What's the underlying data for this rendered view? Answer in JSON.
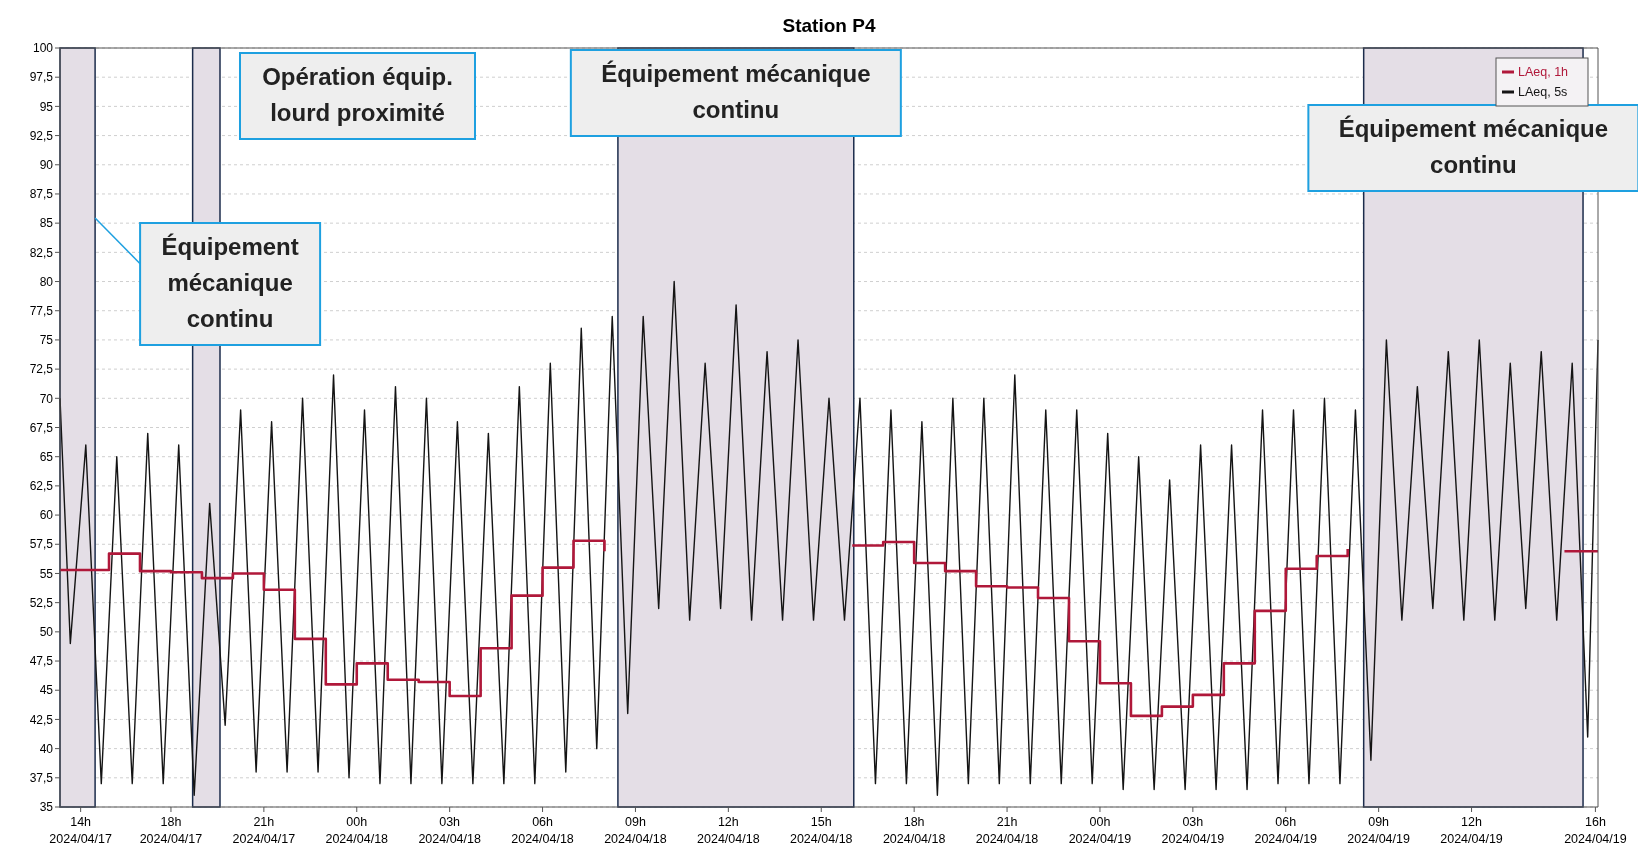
{
  "chart_data": {
    "type": "line",
    "title": "Station P4",
    "xlim": [
      "2024-04-17T14:25",
      "2024-04-19T16:05"
    ],
    "xticks": [
      {
        "value": "2024-04-17T15:05",
        "label": "14h\n2024/04/17"
      },
      {
        "value": "2024-04-17T18:00",
        "label": "18h\n2024/04/17"
      },
      {
        "value": "2024-04-17T21:00",
        "label": "21h\n2024/04/17"
      },
      {
        "value": "2024-04-18T00:00",
        "label": "00h\n2024/04/18"
      },
      {
        "value": "2024-04-18T03:00",
        "label": "03h\n2024/04/18"
      },
      {
        "value": "2024-04-18T06:00",
        "label": "06h\n2024/04/18"
      },
      {
        "value": "2024-04-18T09:00",
        "label": "09h\n2024/04/18"
      },
      {
        "value": "2024-04-18T12:00",
        "label": "12h\n2024/04/18"
      },
      {
        "value": "2024-04-18T15:00",
        "label": "15h\n2024/04/18"
      },
      {
        "value": "2024-04-18T18:00",
        "label": "18h\n2024/04/18"
      },
      {
        "value": "2024-04-18T21:00",
        "label": "21h\n2024/04/18"
      },
      {
        "value": "2024-04-19T00:00",
        "label": "00h\n2024/04/19"
      },
      {
        "value": "2024-04-19T03:00",
        "label": "03h\n2024/04/19"
      },
      {
        "value": "2024-04-19T06:00",
        "label": "06h\n2024/04/19"
      },
      {
        "value": "2024-04-19T09:00",
        "label": "09h\n2024/04/19"
      },
      {
        "value": "2024-04-19T12:00",
        "label": "12h\n2024/04/19"
      },
      {
        "value": "2024-04-19T16:00",
        "label": "16h\n2024/04/19"
      }
    ],
    "ylim": [
      35,
      100
    ],
    "yticks": [
      35,
      {
        "value": 37.5,
        "label": "37,5"
      },
      40,
      {
        "value": 42.5,
        "label": "42,5"
      },
      45,
      {
        "value": 47.5,
        "label": "47,5"
      },
      50,
      {
        "value": 52.5,
        "label": "52,5"
      },
      55,
      {
        "value": 57.5,
        "label": "57,5"
      },
      60,
      {
        "value": 62.5,
        "label": "62,5"
      },
      65,
      {
        "value": 67.5,
        "label": "67,5"
      },
      70,
      {
        "value": 72.5,
        "label": "72,5"
      },
      75,
      {
        "value": 77.5,
        "label": "77,5"
      },
      80,
      {
        "value": 82.5,
        "label": "82,5"
      },
      85,
      {
        "value": 87.5,
        "label": "87,5"
      },
      90,
      {
        "value": 92.5,
        "label": "92,5"
      },
      95,
      {
        "value": 97.5,
        "label": "97,5"
      },
      100
    ],
    "grid": "y",
    "legend": "top right",
    "bands": [
      {
        "axis": "x",
        "from": "2024-04-17T14:25",
        "to": "2024-04-17T15:33",
        "label": "Équipement mécanique continu",
        "color": "#e4dee6"
      },
      {
        "axis": "x",
        "from": "2024-04-17T18:42",
        "to": "2024-04-17T19:35",
        "label": "Opération équip. lourd proximité",
        "color": "#e4dee6"
      },
      {
        "axis": "x",
        "from": "2024-04-18T08:26",
        "to": "2024-04-18T16:03",
        "label": "Équipement mécanique continu",
        "color": "#e4dee6"
      },
      {
        "axis": "x",
        "from": "2024-04-19T08:31",
        "to": "2024-04-19T15:36",
        "label": "Équipement mécanique continu",
        "color": "#e4dee6"
      }
    ],
    "series": [
      {
        "name": "LAeq, 5s",
        "color": "#141414",
        "type": "line",
        "x": [
          "2024-04-17T14:25",
          "2024-04-17T14:45",
          "2024-04-17T15:15",
          "2024-04-17T15:45",
          "2024-04-17T16:15",
          "2024-04-17T16:45",
          "2024-04-17T17:15",
          "2024-04-17T17:45",
          "2024-04-17T18:15",
          "2024-04-17T18:45",
          "2024-04-17T19:15",
          "2024-04-17T19:45",
          "2024-04-17T20:15",
          "2024-04-17T20:45",
          "2024-04-17T21:15",
          "2024-04-17T21:45",
          "2024-04-17T22:15",
          "2024-04-17T22:45",
          "2024-04-17T23:15",
          "2024-04-17T23:45",
          "2024-04-18T00:15",
          "2024-04-18T00:45",
          "2024-04-18T01:15",
          "2024-04-18T01:45",
          "2024-04-18T02:15",
          "2024-04-18T02:45",
          "2024-04-18T03:15",
          "2024-04-18T03:45",
          "2024-04-18T04:15",
          "2024-04-18T04:45",
          "2024-04-18T05:15",
          "2024-04-18T05:45",
          "2024-04-18T06:15",
          "2024-04-18T06:45",
          "2024-04-18T07:15",
          "2024-04-18T07:45",
          "2024-04-18T08:15",
          "2024-04-18T08:45",
          "2024-04-18T09:15",
          "2024-04-18T09:45",
          "2024-04-18T10:15",
          "2024-04-18T10:45",
          "2024-04-18T11:15",
          "2024-04-18T11:45",
          "2024-04-18T12:15",
          "2024-04-18T12:45",
          "2024-04-18T13:15",
          "2024-04-18T13:45",
          "2024-04-18T14:15",
          "2024-04-18T14:45",
          "2024-04-18T15:15",
          "2024-04-18T15:45",
          "2024-04-18T16:15",
          "2024-04-18T16:45",
          "2024-04-18T17:15",
          "2024-04-18T17:45",
          "2024-04-18T18:15",
          "2024-04-18T18:45",
          "2024-04-18T19:15",
          "2024-04-18T19:45",
          "2024-04-18T20:15",
          "2024-04-18T20:45",
          "2024-04-18T21:15",
          "2024-04-18T21:45",
          "2024-04-18T22:15",
          "2024-04-18T22:45",
          "2024-04-18T23:15",
          "2024-04-18T23:45",
          "2024-04-19T00:15",
          "2024-04-19T00:45",
          "2024-04-19T01:15",
          "2024-04-19T01:45",
          "2024-04-19T02:15",
          "2024-04-19T02:45",
          "2024-04-19T03:15",
          "2024-04-19T03:45",
          "2024-04-19T04:15",
          "2024-04-19T04:45",
          "2024-04-19T05:15",
          "2024-04-19T05:45",
          "2024-04-19T06:15",
          "2024-04-19T06:45",
          "2024-04-19T07:15",
          "2024-04-19T07:45",
          "2024-04-19T08:15",
          "2024-04-19T08:45",
          "2024-04-19T09:15",
          "2024-04-19T09:45",
          "2024-04-19T10:15",
          "2024-04-19T10:45",
          "2024-04-19T11:15",
          "2024-04-19T11:45",
          "2024-04-19T12:15",
          "2024-04-19T12:45",
          "2024-04-19T13:15",
          "2024-04-19T13:45",
          "2024-04-19T14:15",
          "2024-04-19T14:45",
          "2024-04-19T15:15",
          "2024-04-19T15:45",
          "2024-04-19T16:05"
        ],
        "values": [
          70,
          49,
          66,
          37,
          65,
          37,
          67,
          37,
          66,
          36,
          61,
          42,
          69,
          38,
          68,
          38,
          70,
          38,
          72,
          37.5,
          69,
          37,
          71,
          37,
          70,
          37,
          68,
          37,
          67,
          37,
          71,
          37,
          73,
          38,
          76,
          40,
          77,
          43,
          77,
          52,
          80,
          51,
          73,
          52,
          78,
          51,
          74,
          51,
          75,
          51,
          70,
          51,
          70,
          37,
          69,
          37,
          68,
          36,
          70,
          37,
          70,
          37,
          72,
          37,
          69,
          37,
          69,
          37,
          67,
          36.5,
          65,
          36.5,
          63,
          36.5,
          66,
          36.5,
          66,
          36.5,
          69,
          37,
          69,
          37,
          70,
          37,
          69,
          39,
          75,
          51,
          71,
          52,
          74,
          51,
          75,
          51,
          73,
          52,
          74,
          51,
          73,
          41,
          75
        ]
      },
      {
        "name": "LAeq, 1h",
        "color": "#b0183a",
        "type": "step",
        "x": [
          "2024-04-17T14:25",
          "2024-04-17T15:00",
          "2024-04-17T16:00",
          "2024-04-17T17:00",
          "2024-04-17T18:00",
          "2024-04-17T19:00",
          "2024-04-17T20:00",
          "2024-04-17T21:00",
          "2024-04-17T22:00",
          "2024-04-17T23:00",
          "2024-04-18T00:00",
          "2024-04-18T01:00",
          "2024-04-18T02:00",
          "2024-04-18T03:00",
          "2024-04-18T04:00",
          "2024-04-18T05:00",
          "2024-04-18T06:00",
          "2024-04-18T07:00",
          "2024-04-18T08:00",
          "2024-04-18T09:00",
          "2024-04-18T10:00",
          "2024-04-18T11:00",
          "2024-04-18T12:00",
          "2024-04-18T13:00",
          "2024-04-18T14:00",
          "2024-04-18T15:00",
          "2024-04-18T16:00",
          "2024-04-18T17:00",
          "2024-04-18T18:00",
          "2024-04-18T19:00",
          "2024-04-18T20:00",
          "2024-04-18T21:00",
          "2024-04-18T22:00",
          "2024-04-18T23:00",
          "2024-04-19T00:00",
          "2024-04-19T01:00",
          "2024-04-19T02:00",
          "2024-04-19T03:00",
          "2024-04-19T04:00",
          "2024-04-19T05:00",
          "2024-04-19T06:00",
          "2024-04-19T07:00",
          "2024-04-19T08:00",
          "2024-04-19T09:00",
          "2024-04-19T10:00",
          "2024-04-19T11:00",
          "2024-04-19T12:00",
          "2024-04-19T13:00",
          "2024-04-19T14:00",
          "2024-04-19T15:00",
          "2024-04-19T16:05"
        ],
        "values": [
          55.3,
          55.3,
          56.7,
          55.2,
          55.1,
          54.6,
          55.0,
          53.6,
          49.4,
          45.5,
          47.3,
          45.9,
          45.7,
          44.5,
          48.6,
          53.1,
          55.5,
          57.8,
          56.9,
          null,
          null,
          null,
          null,
          null,
          null,
          null,
          57.4,
          57.7,
          55.9,
          55.2,
          53.9,
          53.8,
          52.9,
          49.2,
          45.6,
          42.8,
          43.6,
          44.6,
          47.3,
          51.8,
          55.4,
          56.5,
          57.1,
          null,
          null,
          null,
          null,
          null,
          null,
          56.9,
          56.9
        ]
      }
    ]
  }
}
